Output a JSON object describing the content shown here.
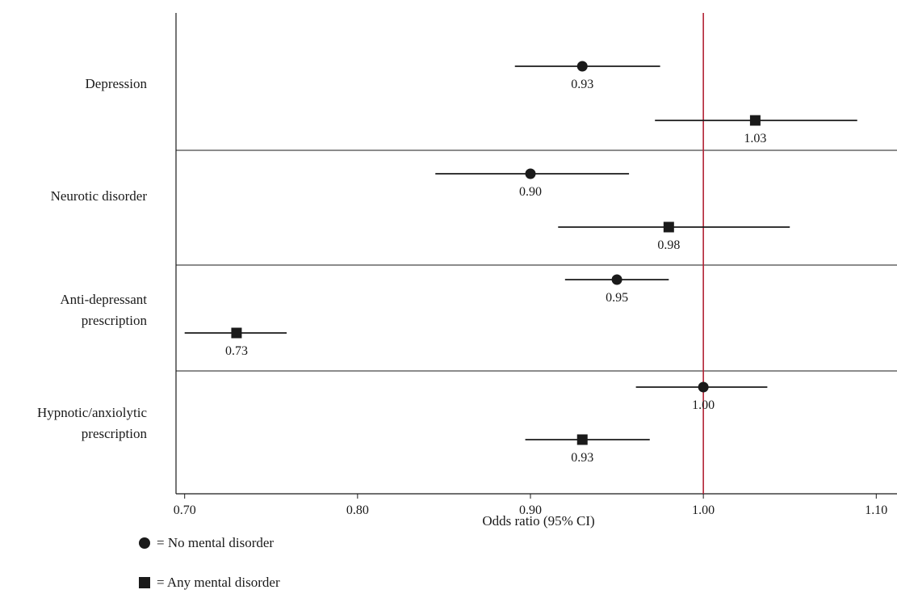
{
  "chart_data": {
    "type": "forest",
    "xlabel": "Odds ratio (95% CI)",
    "xlim": [
      0.695,
      1.112
    ],
    "xticks": [
      "0.70",
      "0.80",
      "0.90",
      "1.00",
      "1.10"
    ],
    "reference_line": 1.0,
    "reference_color": "#b22234",
    "categories": [
      {
        "label_lines": [
          "Depression"
        ],
        "estimates": [
          {
            "series": "No mental disorder",
            "or": 0.93,
            "or_label": "0.93",
            "ci": [
              0.891,
              0.975
            ]
          },
          {
            "series": "Any mental disorder",
            "or": 1.03,
            "or_label": "1.03",
            "ci": [
              0.972,
              1.089
            ]
          }
        ]
      },
      {
        "label_lines": [
          "Neurotic disorder"
        ],
        "estimates": [
          {
            "series": "No mental disorder",
            "or": 0.9,
            "or_label": "0.90",
            "ci": [
              0.845,
              0.957
            ]
          },
          {
            "series": "Any mental disorder",
            "or": 0.98,
            "or_label": "0.98",
            "ci": [
              0.916,
              1.05
            ]
          }
        ]
      },
      {
        "label_lines": [
          "Anti-depressant",
          "prescription"
        ],
        "estimates": [
          {
            "series": "No mental disorder",
            "or": 0.95,
            "or_label": "0.95",
            "ci": [
              0.92,
              0.98
            ]
          },
          {
            "series": "Any mental disorder",
            "or": 0.73,
            "or_label": "0.73",
            "ci": [
              0.7,
              0.759
            ]
          }
        ]
      },
      {
        "label_lines": [
          "Hypnotic/anxiolytic",
          "prescription"
        ],
        "estimates": [
          {
            "series": "No mental disorder",
            "or": 1.0,
            "or_label": "1.00",
            "ci": [
              0.961,
              1.037
            ]
          },
          {
            "series": "Any mental disorder",
            "or": 0.93,
            "or_label": "0.93",
            "ci": [
              0.897,
              0.969
            ]
          }
        ]
      }
    ],
    "legend": [
      {
        "marker": "circle",
        "text": "= No mental disorder"
      },
      {
        "marker": "square",
        "text": "= Any mental disorder"
      }
    ],
    "legend_position": "bottom-left",
    "grid": false
  }
}
